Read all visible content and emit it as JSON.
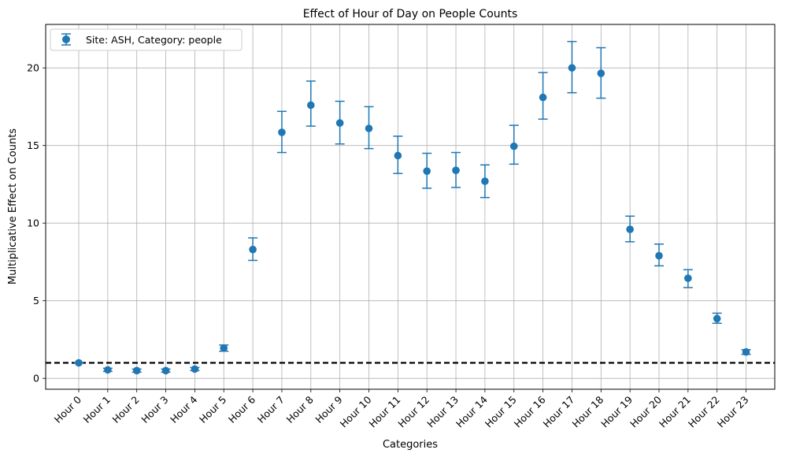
{
  "chart_data": {
    "type": "scatter",
    "title": "Effect of Hour of Day on People Counts",
    "xlabel": "Categories",
    "ylabel": "Multiplicative Effect on Counts",
    "categories": [
      "Hour 0",
      "Hour 1",
      "Hour 2",
      "Hour 3",
      "Hour 4",
      "Hour 5",
      "Hour 6",
      "Hour 7",
      "Hour 8",
      "Hour 9",
      "Hour 10",
      "Hour 11",
      "Hour 12",
      "Hour 13",
      "Hour 14",
      "Hour 15",
      "Hour 16",
      "Hour 17",
      "Hour 18",
      "Hour 19",
      "Hour 20",
      "Hour 21",
      "Hour 22",
      "Hour 23"
    ],
    "series": [
      {
        "name": "Site: ASH, Category: people",
        "color": "#1f77b4",
        "values": [
          1.0,
          0.55,
          0.5,
          0.5,
          0.6,
          1.95,
          8.3,
          15.85,
          17.6,
          16.45,
          16.1,
          14.35,
          13.35,
          13.4,
          12.7,
          14.95,
          18.1,
          20.0,
          19.65,
          9.6,
          7.9,
          6.45,
          3.85,
          1.7
        ],
        "lower": [
          1.0,
          0.45,
          0.4,
          0.4,
          0.5,
          1.75,
          7.6,
          14.55,
          16.25,
          15.1,
          14.8,
          13.2,
          12.25,
          12.3,
          11.65,
          13.8,
          16.7,
          18.4,
          18.05,
          8.8,
          7.25,
          5.85,
          3.55,
          1.55
        ],
        "upper": [
          1.0,
          0.65,
          0.6,
          0.6,
          0.7,
          2.15,
          9.05,
          17.2,
          19.15,
          17.85,
          17.5,
          15.6,
          14.5,
          14.55,
          13.75,
          16.3,
          19.7,
          21.7,
          21.3,
          10.45,
          8.65,
          7.0,
          4.2,
          1.85
        ]
      }
    ],
    "reference_line": {
      "y": 1,
      "style": "dashed",
      "color": "#000000"
    },
    "yticks": [
      0,
      5,
      10,
      15,
      20
    ],
    "ylim": [
      -0.7,
      22.8
    ],
    "grid": true,
    "legend_position": "top-left"
  }
}
